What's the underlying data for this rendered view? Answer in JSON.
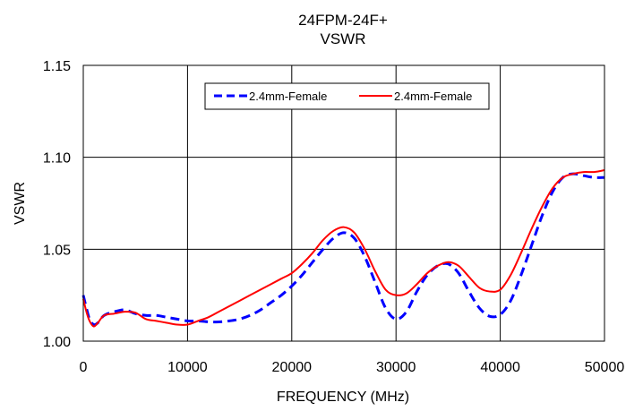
{
  "chart_data": {
    "type": "line",
    "title": "24FPM-24F+",
    "subtitle": "VSWR",
    "xlabel": "FREQUENCY (MHz)",
    "ylabel": "VSWR",
    "xlim": [
      0,
      50000
    ],
    "ylim": [
      1.0,
      1.15
    ],
    "xticks": [
      0,
      10000,
      20000,
      30000,
      40000,
      50000
    ],
    "xtick_labels": [
      "0",
      "10000",
      "20000",
      "30000",
      "40000",
      "50000"
    ],
    "yticks": [
      1.0,
      1.05,
      1.1,
      1.15
    ],
    "ytick_labels": [
      "1.00",
      "1.05",
      "1.10",
      "1.15"
    ],
    "grid": true,
    "legend_position": "top-center",
    "series": [
      {
        "name": "2.4mm-Female",
        "color": "#0000ff",
        "style": "dashed",
        "x": [
          0,
          300,
          600,
          1000,
          1400,
          2000,
          3000,
          4000,
          5000,
          6000,
          7000,
          8000,
          9000,
          10000,
          11000,
          12000,
          13000,
          14000,
          15000,
          16000,
          17000,
          18000,
          19000,
          20000,
          21000,
          22000,
          23000,
          24000,
          25000,
          26000,
          27000,
          28000,
          29000,
          30000,
          31000,
          32000,
          33000,
          34000,
          35000,
          36000,
          37000,
          38000,
          39000,
          40000,
          41000,
          42000,
          43000,
          44000,
          45000,
          46000,
          47000,
          48000,
          49000,
          50000
        ],
        "values": [
          1.025,
          1.018,
          1.012,
          1.009,
          1.01,
          1.014,
          1.016,
          1.017,
          1.015,
          1.014,
          1.014,
          1.013,
          1.012,
          1.011,
          1.011,
          1.0105,
          1.0105,
          1.011,
          1.012,
          1.014,
          1.017,
          1.021,
          1.025,
          1.03,
          1.036,
          1.043,
          1.05,
          1.056,
          1.059,
          1.056,
          1.046,
          1.032,
          1.018,
          1.012,
          1.016,
          1.027,
          1.036,
          1.041,
          1.042,
          1.037,
          1.027,
          1.018,
          1.0135,
          1.0145,
          1.022,
          1.036,
          1.052,
          1.068,
          1.081,
          1.089,
          1.091,
          1.09,
          1.089,
          1.089
        ]
      },
      {
        "name": "2.4mm-Female",
        "color": "#ff0000",
        "style": "solid",
        "x": [
          0,
          300,
          600,
          1000,
          1400,
          2000,
          3000,
          4000,
          5000,
          6000,
          7000,
          8000,
          9000,
          10000,
          11000,
          12000,
          13000,
          14000,
          15000,
          16000,
          17000,
          18000,
          19000,
          20000,
          21000,
          22000,
          23000,
          24000,
          25000,
          26000,
          27000,
          28000,
          29000,
          30000,
          31000,
          32000,
          33000,
          34000,
          35000,
          36000,
          37000,
          38000,
          39000,
          40000,
          41000,
          42000,
          43000,
          44000,
          45000,
          46000,
          47000,
          48000,
          49000,
          50000
        ],
        "values": [
          1.023,
          1.016,
          1.011,
          1.008,
          1.01,
          1.014,
          1.015,
          1.016,
          1.0155,
          1.012,
          1.011,
          1.01,
          1.009,
          1.009,
          1.011,
          1.013,
          1.016,
          1.019,
          1.022,
          1.025,
          1.028,
          1.031,
          1.034,
          1.037,
          1.042,
          1.048,
          1.055,
          1.06,
          1.062,
          1.059,
          1.05,
          1.038,
          1.028,
          1.025,
          1.026,
          1.031,
          1.037,
          1.041,
          1.043,
          1.041,
          1.035,
          1.029,
          1.027,
          1.028,
          1.036,
          1.048,
          1.061,
          1.073,
          1.083,
          1.089,
          1.091,
          1.092,
          1.092,
          1.093
        ]
      }
    ]
  },
  "colors": {
    "series_blue": "#0000ff",
    "series_red": "#ff0000",
    "grid": "#000000",
    "background": "#ffffff"
  }
}
